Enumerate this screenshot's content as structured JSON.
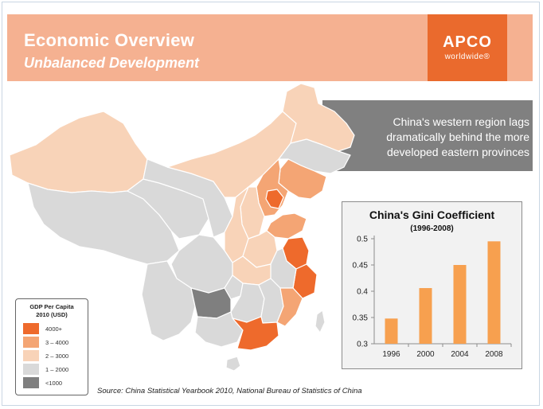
{
  "header": {
    "title": "Economic Overview",
    "subtitle": "Unbalanced Development"
  },
  "logo": {
    "main": "APCO",
    "sub": "worldwide®"
  },
  "callout": {
    "text": "China's western region lags dramatically behind the more developed eastern provinces"
  },
  "legend": {
    "title_line1": "GDP Per Capita",
    "title_line2": "2010 (USD)",
    "items": [
      {
        "label": "4000+",
        "color": "#ee6a2c"
      },
      {
        "label": "3 – 4000",
        "color": "#f4a574"
      },
      {
        "label": "2 – 3000",
        "color": "#f8d3b8"
      },
      {
        "label": "1 – 2000",
        "color": "#d9d9d9"
      },
      {
        "label": "<1000",
        "color": "#7f7f7f"
      }
    ]
  },
  "source": "Source: China Statistical Yearbook 2010,  National Bureau of Statistics of China",
  "chart_data": {
    "type": "bar",
    "title": "China's Gini Coefficient",
    "subtitle": "(1996-2008)",
    "categories": [
      "1996",
      "2000",
      "2004",
      "2008"
    ],
    "values": [
      0.348,
      0.406,
      0.45,
      0.495
    ],
    "ylim": [
      0.3,
      0.5
    ],
    "yticks": [
      "0.3",
      "0.35",
      "0.4",
      "0.45",
      "0.5"
    ],
    "bar_color": "#f7a04f",
    "grid": false
  }
}
